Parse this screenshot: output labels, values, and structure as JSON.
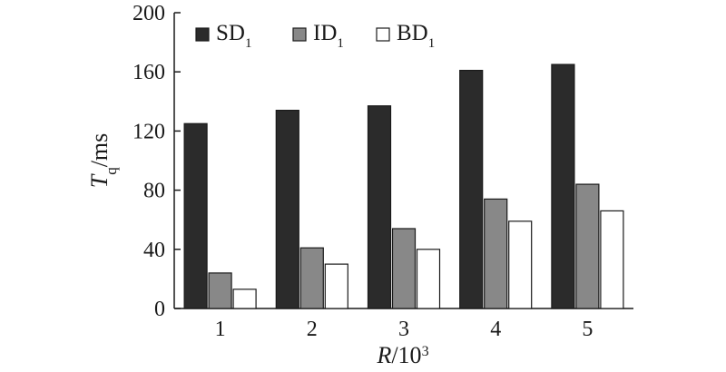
{
  "chart_data": {
    "type": "bar",
    "categories": [
      "1",
      "2",
      "3",
      "4",
      "5"
    ],
    "series": [
      {
        "name": "SD",
        "name_sub": "1",
        "values": [
          125,
          134,
          137,
          161,
          165
        ],
        "color": "#2b2b2b"
      },
      {
        "name": "ID",
        "name_sub": "1",
        "values": [
          24,
          41,
          54,
          74,
          84
        ],
        "color": "#888888"
      },
      {
        "name": "BD",
        "name_sub": "1",
        "values": [
          13,
          30,
          40,
          59,
          66
        ],
        "color": "#ffffff"
      }
    ],
    "xlabel": {
      "var": "R",
      "unit": "/10",
      "sup": "3"
    },
    "ylabel": {
      "var": "T",
      "sub": "q",
      "unit": "/ms"
    },
    "ylim": [
      0,
      200
    ],
    "yticks": [
      "0",
      "40",
      "80",
      "120",
      "160",
      "200"
    ],
    "legend_position": "top-left",
    "grid": false
  }
}
